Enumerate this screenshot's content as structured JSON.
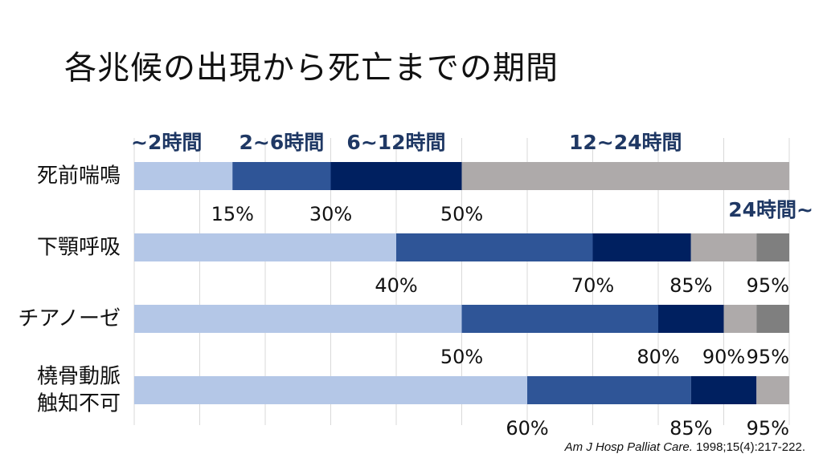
{
  "title": "各兆候の出現から死亡までの期間",
  "citation": {
    "journal": "Am J Hosp Palliat Care.",
    "details": " 1998;15(4):217-222."
  },
  "colors": {
    "lt2h": "#b4c7e7",
    "h2to6": "#2f5597",
    "h6to12": "#002060",
    "h12to24": "#aeaaaa",
    "gt24h": "#7f7f7f",
    "gridline": "#d9d9d9",
    "legend_text": "#1f3864"
  },
  "chart_data": {
    "type": "bar",
    "orientation": "horizontal",
    "stacked": true,
    "xlim": [
      0,
      100
    ],
    "grid": true,
    "categories": [
      [
        "死前喘鳴"
      ],
      [
        "下顎呼吸"
      ],
      [
        "チアノーゼ"
      ],
      [
        "橈骨動脈",
        "触知不可"
      ]
    ],
    "series": [
      {
        "name": "~2時間",
        "color_key": "lt2h",
        "values": [
          15,
          40,
          50,
          60
        ]
      },
      {
        "name": "2~6時間",
        "color_key": "h2to6",
        "values": [
          15,
          30,
          30,
          25
        ]
      },
      {
        "name": "6~12時間",
        "color_key": "h6to12",
        "values": [
          20,
          15,
          10,
          10
        ]
      },
      {
        "name": "12~24時間",
        "color_key": "h12to24",
        "values": [
          50,
          10,
          5,
          5
        ]
      },
      {
        "name": "24時間~",
        "color_key": "gt24h",
        "values": [
          0,
          5,
          5,
          0
        ]
      }
    ],
    "cumulative_labels": [
      [
        "15%",
        "30%",
        "50%"
      ],
      [
        "40%",
        "70%",
        "85%",
        "95%"
      ],
      [
        "50%",
        "80%",
        "90%",
        "95%"
      ],
      [
        "60%",
        "85%",
        "95%"
      ]
    ],
    "cumulative_values": [
      [
        15,
        30,
        50
      ],
      [
        40,
        70,
        85,
        95
      ],
      [
        50,
        80,
        90,
        95
      ],
      [
        60,
        85,
        95
      ]
    ]
  }
}
